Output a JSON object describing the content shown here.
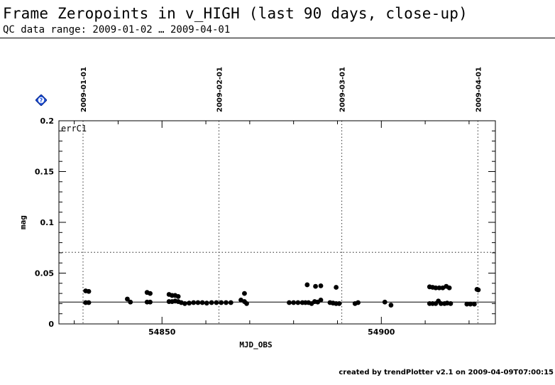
{
  "header": {
    "title": "Frame Zeropoints in v_HIGH (last 90 days, close-up)",
    "subtitle": "QC data range: 2009-01-02 … 2009-04-01"
  },
  "footer": {
    "text": "created by trendPlotter v2.1 on 2009-04-09T07:00:15"
  },
  "help": {
    "icon": "help-icon",
    "glyph": "?",
    "color": "#1e4fd8"
  },
  "chart_data": {
    "type": "scatter",
    "panel_label": "errC1",
    "xlabel": "MJD_OBS",
    "ylabel": "mag",
    "xlim": [
      54826.5,
      54926
    ],
    "ylim": [
      0,
      0.2
    ],
    "xticks_major": [
      54850,
      54900
    ],
    "xticks_minor_step": 10,
    "yticks_major": [
      0,
      0.05,
      0.1,
      0.15,
      0.2
    ],
    "ytick_labels": [
      "0",
      "0.05",
      "0.1",
      "0.15",
      "0.2"
    ],
    "yticks_minor_step": 0.01,
    "reference_lines": [
      {
        "name": "median",
        "y": 0.0215,
        "style": "solid"
      },
      {
        "name": "threshold",
        "y": 0.0705,
        "style": "dotted"
      }
    ],
    "date_markers": [
      {
        "label": "2009-01-01",
        "x": 54832.0
      },
      {
        "label": "2009-02-01",
        "x": 54863.0
      },
      {
        "label": "2009-03-01",
        "x": 54891.0
      },
      {
        "label": "2009-04-01",
        "x": 54922.0
      }
    ],
    "points": [
      {
        "x": 54832.6,
        "y": 0.0325
      },
      {
        "x": 54833.3,
        "y": 0.032
      },
      {
        "x": 54832.6,
        "y": 0.021
      },
      {
        "x": 54833.3,
        "y": 0.021
      },
      {
        "x": 54842.1,
        "y": 0.0245
      },
      {
        "x": 54842.8,
        "y": 0.0215
      },
      {
        "x": 54846.6,
        "y": 0.031
      },
      {
        "x": 54847.3,
        "y": 0.03
      },
      {
        "x": 54846.6,
        "y": 0.0215
      },
      {
        "x": 54847.3,
        "y": 0.0215
      },
      {
        "x": 54851.6,
        "y": 0.029
      },
      {
        "x": 54852.3,
        "y": 0.028
      },
      {
        "x": 54853.0,
        "y": 0.028
      },
      {
        "x": 54853.7,
        "y": 0.027
      },
      {
        "x": 54851.6,
        "y": 0.022
      },
      {
        "x": 54852.3,
        "y": 0.022
      },
      {
        "x": 54853.0,
        "y": 0.0225
      },
      {
        "x": 54853.7,
        "y": 0.022
      },
      {
        "x": 54854.4,
        "y": 0.021
      },
      {
        "x": 54855.2,
        "y": 0.02
      },
      {
        "x": 54856.2,
        "y": 0.0205
      },
      {
        "x": 54857.2,
        "y": 0.021
      },
      {
        "x": 54858.2,
        "y": 0.021
      },
      {
        "x": 54859.2,
        "y": 0.021
      },
      {
        "x": 54860.2,
        "y": 0.0205
      },
      {
        "x": 54861.3,
        "y": 0.021
      },
      {
        "x": 54862.4,
        "y": 0.021
      },
      {
        "x": 54863.5,
        "y": 0.021
      },
      {
        "x": 54864.6,
        "y": 0.021
      },
      {
        "x": 54865.7,
        "y": 0.021
      },
      {
        "x": 54868.0,
        "y": 0.0235
      },
      {
        "x": 54868.8,
        "y": 0.03
      },
      {
        "x": 54868.8,
        "y": 0.022
      },
      {
        "x": 54869.3,
        "y": 0.02
      },
      {
        "x": 54879.0,
        "y": 0.021
      },
      {
        "x": 54880.0,
        "y": 0.021
      },
      {
        "x": 54881.0,
        "y": 0.021
      },
      {
        "x": 54882.0,
        "y": 0.021
      },
      {
        "x": 54882.7,
        "y": 0.021
      },
      {
        "x": 54883.1,
        "y": 0.0385
      },
      {
        "x": 54883.4,
        "y": 0.021
      },
      {
        "x": 54884.1,
        "y": 0.02
      },
      {
        "x": 54884.8,
        "y": 0.022
      },
      {
        "x": 54885.0,
        "y": 0.037
      },
      {
        "x": 54885.5,
        "y": 0.0215
      },
      {
        "x": 54886.2,
        "y": 0.0375
      },
      {
        "x": 54886.2,
        "y": 0.0235
      },
      {
        "x": 54888.3,
        "y": 0.021
      },
      {
        "x": 54889.0,
        "y": 0.0205
      },
      {
        "x": 54889.7,
        "y": 0.036
      },
      {
        "x": 54889.7,
        "y": 0.02
      },
      {
        "x": 54890.4,
        "y": 0.02
      },
      {
        "x": 54894.0,
        "y": 0.02
      },
      {
        "x": 54894.7,
        "y": 0.021
      },
      {
        "x": 54900.8,
        "y": 0.0215
      },
      {
        "x": 54902.2,
        "y": 0.0185
      },
      {
        "x": 54911.0,
        "y": 0.0365
      },
      {
        "x": 54911.7,
        "y": 0.036
      },
      {
        "x": 54912.4,
        "y": 0.0355
      },
      {
        "x": 54913.2,
        "y": 0.0355
      },
      {
        "x": 54914.0,
        "y": 0.0355
      },
      {
        "x": 54914.8,
        "y": 0.037
      },
      {
        "x": 54915.5,
        "y": 0.0355
      },
      {
        "x": 54911.0,
        "y": 0.02
      },
      {
        "x": 54911.7,
        "y": 0.02
      },
      {
        "x": 54912.4,
        "y": 0.02
      },
      {
        "x": 54913.0,
        "y": 0.0225
      },
      {
        "x": 54913.6,
        "y": 0.02
      },
      {
        "x": 54914.4,
        "y": 0.02
      },
      {
        "x": 54915.0,
        "y": 0.0205
      },
      {
        "x": 54915.8,
        "y": 0.02
      },
      {
        "x": 54919.5,
        "y": 0.0195
      },
      {
        "x": 54920.3,
        "y": 0.0195
      },
      {
        "x": 54921.2,
        "y": 0.0195
      },
      {
        "x": 54921.8,
        "y": 0.034
      },
      {
        "x": 54922.1,
        "y": 0.0335
      }
    ]
  }
}
